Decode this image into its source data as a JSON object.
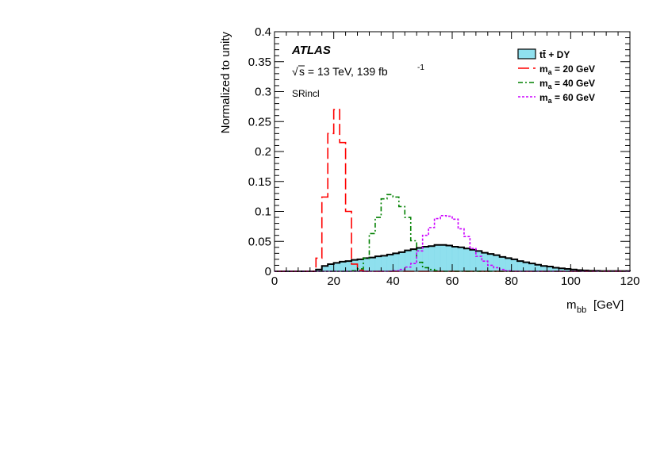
{
  "chart_data": {
    "type": "histogram",
    "xlabel": "m",
    "xlabel_sub": "bb",
    "xlabel_unit": "[GeV]",
    "ylabel": "Normalized to unity",
    "xlim": [
      0,
      120
    ],
    "ylim": [
      0,
      0.4
    ],
    "x_ticks": [
      0,
      20,
      40,
      60,
      80,
      100,
      120
    ],
    "y_ticks": [
      0,
      0.05,
      0.1,
      0.15,
      0.2,
      0.25,
      0.3,
      0.35,
      0.4
    ],
    "y_tick_labels": [
      "0",
      "0.05",
      "0.1",
      "0.15",
      "0.2",
      "0.25",
      "0.3",
      "0.35",
      "0.4"
    ],
    "grid": false,
    "legend_position": "top-right",
    "annotations": {
      "experiment": "ATLAS",
      "sqrt_symbol": "√",
      "energy_base": "s = 13 TeV, 139 fb",
      "energy_exp": "-1",
      "region": "SRincl"
    },
    "series": [
      {
        "legend_main": "tt̄ + DY",
        "legend_sub": "",
        "legend_rest": "",
        "style": "filled",
        "color": "#000000",
        "fill": "#8fe0ee",
        "bins": [
          [
            0,
            14,
            0
          ],
          [
            14,
            16,
            0.003
          ],
          [
            16,
            18,
            0.009
          ],
          [
            18,
            20,
            0.012
          ],
          [
            20,
            22,
            0.014
          ],
          [
            22,
            24,
            0.016
          ],
          [
            24,
            26,
            0.017
          ],
          [
            26,
            28,
            0.019
          ],
          [
            28,
            30,
            0.02
          ],
          [
            30,
            32,
            0.022
          ],
          [
            32,
            34,
            0.023
          ],
          [
            34,
            36,
            0.025
          ],
          [
            36,
            38,
            0.026
          ],
          [
            38,
            40,
            0.028
          ],
          [
            40,
            42,
            0.03
          ],
          [
            42,
            44,
            0.032
          ],
          [
            44,
            46,
            0.035
          ],
          [
            46,
            48,
            0.037
          ],
          [
            48,
            50,
            0.039
          ],
          [
            50,
            52,
            0.041
          ],
          [
            52,
            54,
            0.042
          ],
          [
            54,
            56,
            0.044
          ],
          [
            56,
            58,
            0.044
          ],
          [
            58,
            60,
            0.043
          ],
          [
            60,
            62,
            0.041
          ],
          [
            62,
            64,
            0.04
          ],
          [
            64,
            66,
            0.038
          ],
          [
            66,
            68,
            0.036
          ],
          [
            68,
            70,
            0.034
          ],
          [
            70,
            72,
            0.031
          ],
          [
            72,
            74,
            0.029
          ],
          [
            74,
            76,
            0.027
          ],
          [
            76,
            78,
            0.024
          ],
          [
            78,
            80,
            0.022
          ],
          [
            80,
            82,
            0.02
          ],
          [
            82,
            84,
            0.017
          ],
          [
            84,
            86,
            0.015
          ],
          [
            86,
            88,
            0.013
          ],
          [
            88,
            90,
            0.011
          ],
          [
            90,
            92,
            0.009
          ],
          [
            92,
            94,
            0.008
          ],
          [
            94,
            96,
            0.006
          ],
          [
            96,
            98,
            0.005
          ],
          [
            98,
            100,
            0.004
          ],
          [
            100,
            102,
            0.003
          ],
          [
            102,
            104,
            0.002
          ],
          [
            104,
            106,
            0.0015
          ],
          [
            106,
            108,
            0.001
          ],
          [
            108,
            110,
            0.0008
          ],
          [
            110,
            120,
            0.0005
          ]
        ]
      },
      {
        "legend_main": "m",
        "legend_sub": "a",
        "legend_rest": " = 20 GeV",
        "style": "dashed",
        "color": "#ff0000",
        "bins": [
          [
            0,
            14,
            0
          ],
          [
            14,
            16,
            0.022
          ],
          [
            16,
            18,
            0.124
          ],
          [
            18,
            20,
            0.23
          ],
          [
            20,
            22,
            0.27
          ],
          [
            22,
            24,
            0.215
          ],
          [
            24,
            26,
            0.1
          ],
          [
            26,
            28,
            0.012
          ],
          [
            28,
            30,
            0.002
          ],
          [
            30,
            120,
            0
          ]
        ]
      },
      {
        "legend_main": "m",
        "legend_sub": "a",
        "legend_rest": " = 40 GeV",
        "style": "dashdot",
        "color": "#008000",
        "bins": [
          [
            0,
            26,
            0
          ],
          [
            26,
            28,
            0.001
          ],
          [
            28,
            30,
            0.004
          ],
          [
            30,
            32,
            0.022
          ],
          [
            32,
            34,
            0.063
          ],
          [
            34,
            36,
            0.09
          ],
          [
            36,
            38,
            0.121
          ],
          [
            38,
            40,
            0.128
          ],
          [
            40,
            42,
            0.124
          ],
          [
            42,
            44,
            0.108
          ],
          [
            44,
            46,
            0.09
          ],
          [
            46,
            48,
            0.051
          ],
          [
            48,
            50,
            0.015
          ],
          [
            50,
            52,
            0.006
          ],
          [
            52,
            54,
            0.003
          ],
          [
            54,
            56,
            0.001
          ],
          [
            56,
            120,
            0
          ]
        ]
      },
      {
        "legend_main": "m",
        "legend_sub": "a",
        "legend_rest": " = 60 GeV",
        "style": "dotted",
        "color": "#cc00ff",
        "bins": [
          [
            0,
            40,
            0
          ],
          [
            40,
            42,
            0.001
          ],
          [
            42,
            44,
            0.003
          ],
          [
            44,
            46,
            0.007
          ],
          [
            46,
            48,
            0.013
          ],
          [
            48,
            50,
            0.034
          ],
          [
            50,
            52,
            0.06
          ],
          [
            52,
            54,
            0.073
          ],
          [
            54,
            56,
            0.088
          ],
          [
            56,
            58,
            0.093
          ],
          [
            58,
            60,
            0.092
          ],
          [
            60,
            62,
            0.087
          ],
          [
            62,
            64,
            0.071
          ],
          [
            64,
            66,
            0.058
          ],
          [
            66,
            68,
            0.038
          ],
          [
            68,
            70,
            0.025
          ],
          [
            70,
            72,
            0.017
          ],
          [
            72,
            74,
            0.01
          ],
          [
            74,
            76,
            0.006
          ],
          [
            76,
            78,
            0.003
          ],
          [
            78,
            80,
            0.001
          ],
          [
            80,
            120,
            0
          ]
        ]
      }
    ]
  }
}
